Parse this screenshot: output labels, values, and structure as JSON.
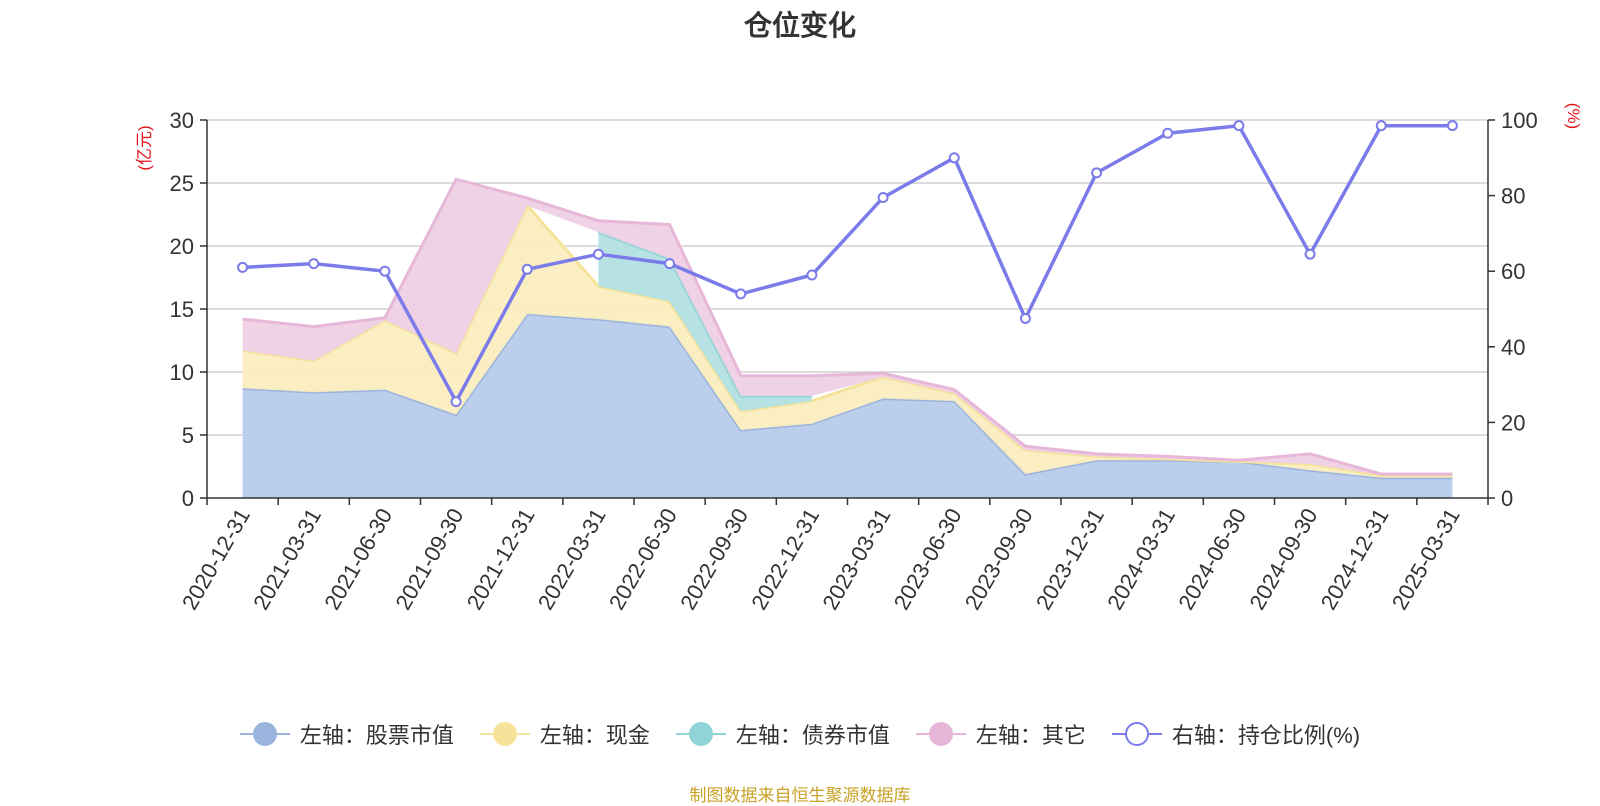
{
  "page": {
    "source_note": "制图数据来自恒生聚源数据库"
  },
  "chart_data": {
    "type": "area",
    "title": "仓位变化",
    "left_axis": {
      "unit_label": "(亿元)",
      "ylim": [
        0,
        30
      ],
      "ticks": [
        0,
        5,
        10,
        15,
        20,
        25,
        30
      ]
    },
    "right_axis": {
      "unit_label": "(%)",
      "ylim": [
        0,
        100
      ],
      "ticks": [
        0,
        20,
        40,
        60,
        80,
        100
      ]
    },
    "categories": [
      "2020-12-31",
      "2021-03-31",
      "2021-06-30",
      "2021-09-30",
      "2021-12-31",
      "2022-03-31",
      "2022-06-30",
      "2022-09-30",
      "2022-12-31",
      "2023-03-31",
      "2023-06-30",
      "2023-09-30",
      "2023-12-31",
      "2024-03-31",
      "2024-06-30",
      "2024-09-30",
      "2024-12-31",
      "2025-03-31"
    ],
    "grid": true,
    "legend_position": "bottom",
    "stacked_series": [
      {
        "name": "左轴：股票市值",
        "axis": "left",
        "fill": "#b7cceb",
        "stroke": "#9ab4de",
        "values": [
          8.7,
          8.4,
          8.6,
          6.6,
          14.6,
          14.2,
          13.6,
          5.4,
          5.9,
          7.9,
          7.7,
          1.9,
          3.0,
          3.0,
          2.9,
          2.2,
          1.6,
          1.6
        ]
      },
      {
        "name": "左轴：现金",
        "axis": "left",
        "fill": "#faedbf",
        "stroke": "#f5e39a",
        "values": [
          3.0,
          2.5,
          5.5,
          4.9,
          8.6,
          2.6,
          2.0,
          1.5,
          1.8,
          1.7,
          0.6,
          1.9,
          0.3,
          0.1,
          0.0,
          0.5,
          0.2,
          0.2
        ]
      },
      {
        "name": "左轴：债券市值",
        "axis": "left",
        "fill": "#b2e0e1",
        "stroke": "#8fd4d6",
        "values": [
          0,
          0,
          0,
          0,
          0,
          4.3,
          3.4,
          1.2,
          0.4,
          0,
          0,
          0,
          0,
          0,
          0,
          0,
          0,
          0
        ]
      },
      {
        "name": "左轴：其它",
        "axis": "left",
        "fill": "#eed0e5",
        "stroke": "#e7b7d9",
        "values": [
          2.5,
          2.7,
          0.2,
          13.8,
          0.6,
          0.9,
          2.7,
          1.6,
          1.6,
          0.3,
          0.3,
          0.3,
          0.2,
          0.2,
          0.1,
          0.8,
          0.1,
          0.1
        ]
      }
    ],
    "line_series": {
      "name": "右轴：持仓比例(%)",
      "axis": "right",
      "color": "#7b7bea",
      "values": [
        61,
        62,
        60,
        25.5,
        60.5,
        64.5,
        62,
        54,
        59,
        79.5,
        90,
        47.5,
        86,
        96.5,
        98.5,
        64.5,
        98.5,
        98.5
      ]
    }
  }
}
